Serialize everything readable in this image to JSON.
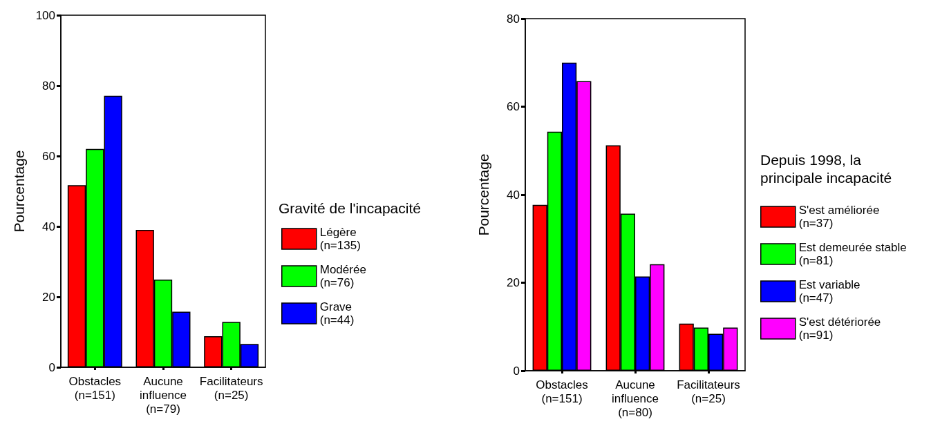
{
  "chart_data": [
    {
      "type": "bar",
      "categories": [
        "Obstacles\n(n=151)",
        "Aucune influence\n(n=79)",
        "Facilitateurs\n(n=25)"
      ],
      "ylabel": "Pourcentage",
      "legend_title": "Gravité de l'incapacité",
      "ylim": [
        0,
        100
      ],
      "yticks": [
        0,
        20,
        40,
        60,
        80,
        100
      ],
      "grid": false,
      "legend": "right",
      "series": [
        {
          "name": "Légère\n(n=135)",
          "color": "#ff0000",
          "values": [
            51.7,
            39.0,
            8.8
          ]
        },
        {
          "name": "Modérée\n(n=76)",
          "color": "#00ff00",
          "values": [
            62.0,
            24.9,
            12.9
          ]
        },
        {
          "name": "Grave\n(n=44)",
          "color": "#0000ff",
          "values": [
            77.1,
            15.8,
            6.6
          ]
        }
      ]
    },
    {
      "type": "bar",
      "categories": [
        "Obstacles\n(n=151)",
        "Aucune influence\n(n=80)",
        "Facilitateurs\n(n=25)"
      ],
      "ylabel": "Pourcentage",
      "legend_title": "Depuis 1998, la principale incapacité",
      "ylim": [
        0,
        80
      ],
      "yticks": [
        0,
        20,
        40,
        60,
        80
      ],
      "grid": false,
      "legend": "right",
      "series": [
        {
          "name": "S'est améliorée\n(n=37)",
          "color": "#ff0000",
          "values": [
            37.7,
            51.2,
            10.7
          ]
        },
        {
          "name": "Est demeurée stable\n(n=81)",
          "color": "#00ff00",
          "values": [
            54.3,
            35.7,
            9.8
          ]
        },
        {
          "name": "Est variable\n(n=47)",
          "color": "#0000ff",
          "values": [
            70.0,
            21.4,
            8.4
          ]
        },
        {
          "name": "S'est détériorée\n(n=91)",
          "color": "#ff00ff",
          "values": [
            65.8,
            24.2,
            9.8
          ]
        }
      ]
    }
  ]
}
